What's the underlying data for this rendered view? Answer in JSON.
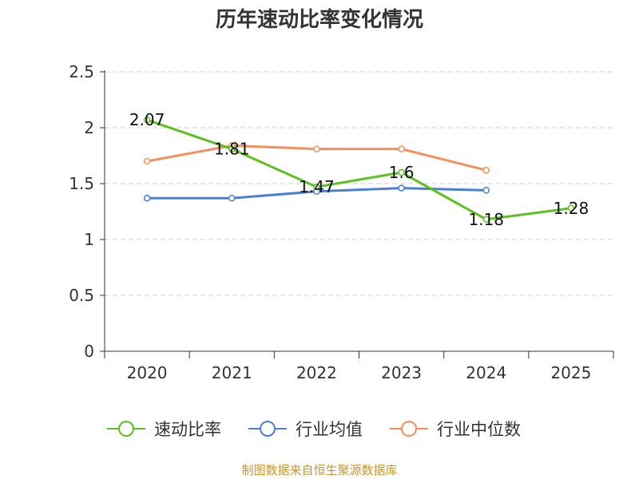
{
  "chart_data": {
    "type": "line",
    "title": "历年速动比率变化情况",
    "categories": [
      "2020",
      "2021",
      "2022",
      "2023",
      "2024",
      "2025"
    ],
    "ylim": [
      0,
      2.5
    ],
    "yticks": [
      0,
      0.5,
      1,
      1.5,
      2,
      2.5
    ],
    "ytick_labels": [
      "0",
      "0.5",
      "1",
      "1.5",
      "2",
      "2.5"
    ],
    "grid": true,
    "legend_position": "bottom",
    "series": [
      {
        "name": "速动比率",
        "color": "#5cc11f",
        "values": [
          2.07,
          1.81,
          1.47,
          1.6,
          1.18,
          1.28
        ],
        "labels": [
          "2.07",
          "1.81",
          "1.47",
          "1.6",
          "1.18",
          "1.28"
        ]
      },
      {
        "name": "行业均值",
        "color": "#4a7fd8",
        "values": [
          1.37,
          1.37,
          1.43,
          1.46,
          1.44,
          null
        ]
      },
      {
        "name": "行业中位数",
        "color": "#f5905a",
        "values": [
          1.7,
          1.84,
          1.81,
          1.81,
          1.62,
          null
        ]
      }
    ],
    "source": "制图数据来自恒生聚源数据库"
  }
}
